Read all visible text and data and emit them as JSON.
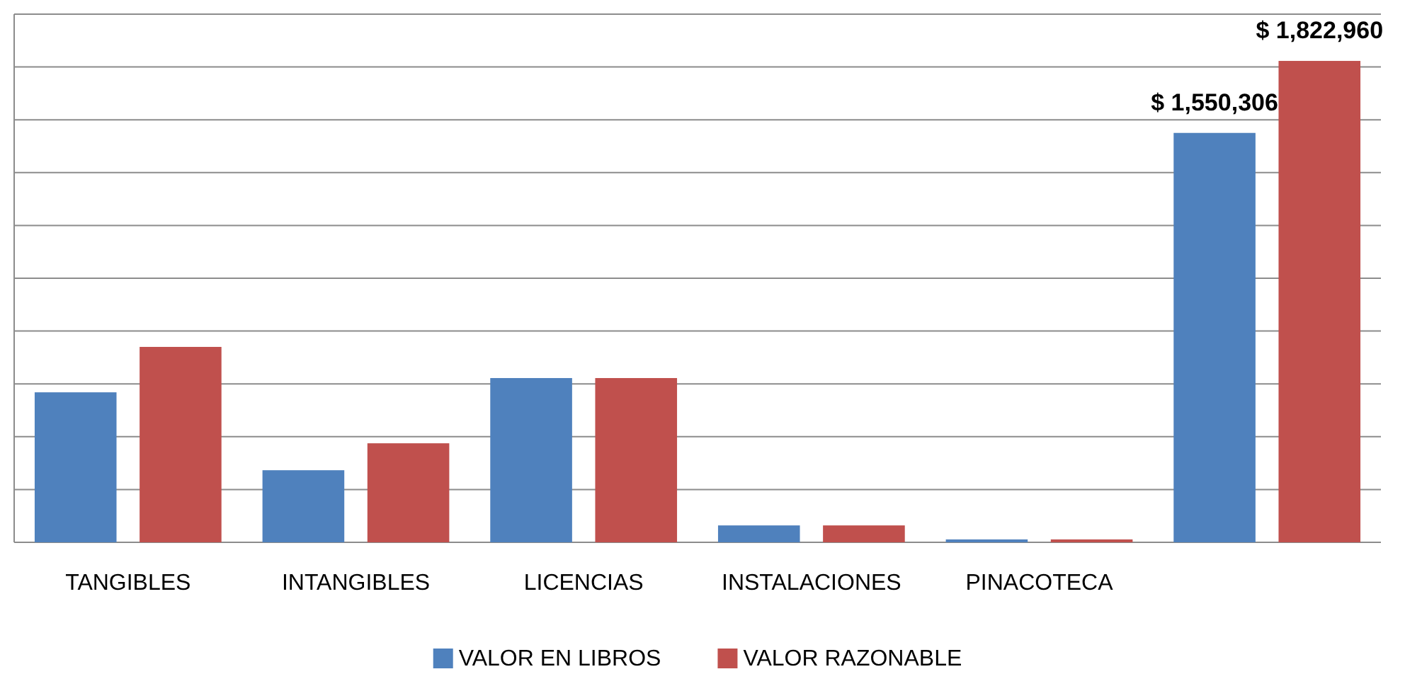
{
  "chart_data": {
    "type": "bar",
    "categories": [
      "TANGIBLES",
      "INTANGIBLES",
      "LICENCIAS",
      "INSTALACIONES",
      "PINACOTECA",
      null
    ],
    "series": [
      {
        "name": "VALOR EN LIBROS",
        "color": "#4f81bd",
        "values": [
          568000,
          273000,
          622000,
          64000,
          11000,
          1550306
        ],
        "value_labels": [
          null,
          null,
          null,
          null,
          null,
          "$ 1,550,306"
        ]
      },
      {
        "name": "VALOR RAZONABLE",
        "color": "#c0504d",
        "values": [
          740000,
          375000,
          622000,
          64000,
          11000,
          1822960
        ],
        "value_labels": [
          null,
          null,
          null,
          null,
          null,
          "$ 1,822,960"
        ]
      }
    ],
    "ylim": [
      0,
      2000000
    ],
    "yticks": [
      {
        "value": 0,
        "label": null
      },
      {
        "value": 200000,
        "label": null
      },
      {
        "value": 400000,
        "label": null
      },
      {
        "value": 600000,
        "label": null
      },
      {
        "value": 800000,
        "label": null
      },
      {
        "value": 1000000,
        "label": null
      },
      {
        "value": 1200000,
        "label": null
      },
      {
        "value": 1400000,
        "label": null
      },
      {
        "value": 1600000,
        "label": null
      },
      {
        "value": 1800000,
        "label": null
      },
      {
        "value": 2000000,
        "label": null
      }
    ],
    "grid": "y",
    "tick_labels": "x",
    "legend": "bottom"
  }
}
